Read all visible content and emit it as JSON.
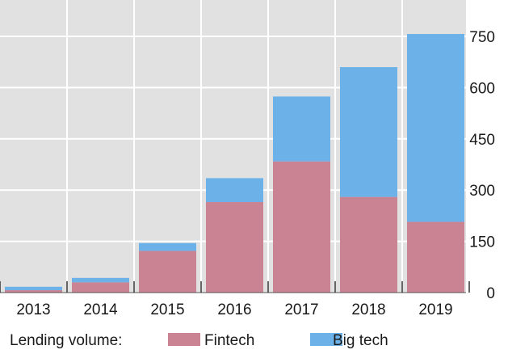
{
  "chart_data": {
    "type": "bar",
    "stacked": true,
    "categories": [
      "2013",
      "2014",
      "2015",
      "2016",
      "2017",
      "2018",
      "2019"
    ],
    "series": [
      {
        "name": "Fintech",
        "color": "#c98393",
        "values": [
          7,
          30,
          122,
          265,
          384,
          280,
          207
        ]
      },
      {
        "name": "Big tech",
        "color": "#6cb2e8",
        "values": [
          10,
          13,
          23,
          70,
          190,
          380,
          550
        ]
      }
    ],
    "ylim": [
      0,
      780
    ],
    "yticks": [
      0,
      150,
      300,
      450,
      600,
      750
    ],
    "y_axis_position": "right",
    "grid": true,
    "background": "#e1e1e1",
    "gridline_color": "#ffffff",
    "legend": {
      "placement": "bottom-left",
      "title": "Lending volume:"
    }
  }
}
